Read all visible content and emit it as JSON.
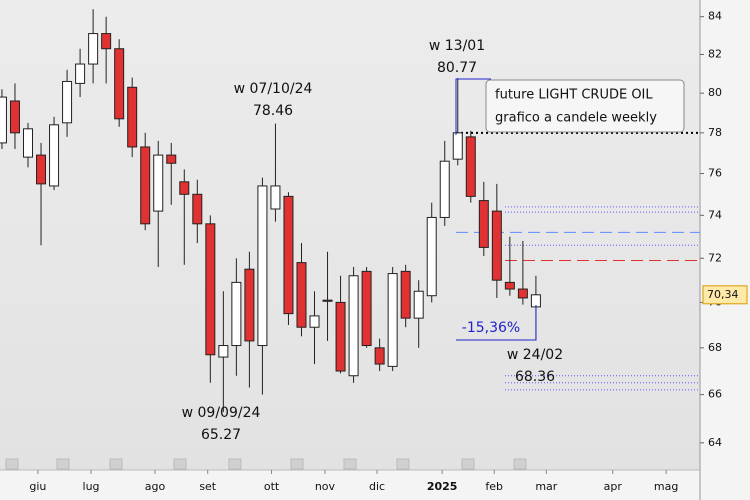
{
  "chart_data": {
    "type": "candlestick",
    "legend_lines": [
      "future LIGHT CRUDE OIL",
      "grafico a candele weekly"
    ],
    "log_scale": true,
    "ylim": [
      62.9,
      84.9
    ],
    "yticks": [
      64,
      66,
      68,
      70,
      72,
      74,
      76,
      78,
      80,
      82,
      84
    ],
    "xlim": [
      -0.15,
      53.6
    ],
    "xticks": [
      {
        "value": 2.76,
        "label": "giu"
      },
      {
        "value": 6.84,
        "label": "lug"
      },
      {
        "value": 11.75,
        "label": "ago"
      },
      {
        "value": 15.8,
        "label": "set"
      },
      {
        "value": 20.7,
        "label": "ott"
      },
      {
        "value": 24.8,
        "label": "nov"
      },
      {
        "value": 28.8,
        "label": "dic"
      },
      {
        "value": 33.8,
        "label": "2025"
      },
      {
        "value": 37.8,
        "label": "feb"
      },
      {
        "value": 41.8,
        "label": "mar"
      },
      {
        "value": 46.9,
        "label": "apr"
      },
      {
        "value": 51.0,
        "label": "mag"
      }
    ],
    "up_color": "#ffffff",
    "down_color": "#e03232",
    "x": [
      0,
      1,
      2,
      3,
      4,
      5,
      6,
      7,
      8,
      9,
      10,
      11,
      12,
      13,
      14,
      15,
      16,
      17,
      18,
      19,
      20,
      21,
      22,
      23,
      24,
      25,
      26,
      27,
      28,
      29,
      30,
      31,
      32,
      33,
      34,
      35,
      36,
      37,
      38,
      39,
      40,
      41
    ],
    "open": [
      77.5,
      79.6,
      76.8,
      76.9,
      75.4,
      78.5,
      80.5,
      81.5,
      83.1,
      82.3,
      80.3,
      77.3,
      74.2,
      76.9,
      75.6,
      75.0,
      73.6,
      67.6,
      68.1,
      71.5,
      68.1,
      74.3,
      74.9,
      71.8,
      68.9,
      70.1,
      70.0,
      66.8,
      71.4,
      68.0,
      67.2,
      71.4,
      69.3,
      70.3,
      73.9,
      76.7,
      77.8,
      74.7,
      74.2,
      70.9,
      70.6,
      69.8
    ],
    "high": [
      80.2,
      80.5,
      78.5,
      77.5,
      78.8,
      81.2,
      82.3,
      84.4,
      84.0,
      82.8,
      80.8,
      78.0,
      77.6,
      77.5,
      76.2,
      75.7,
      74.0,
      70.5,
      72.0,
      72.3,
      75.8,
      78.46,
      75.1,
      72.7,
      70.5,
      72.3,
      71.2,
      71.6,
      71.6,
      68.4,
      71.6,
      71.7,
      71.0,
      74.6,
      77.6,
      80.77,
      78.1,
      75.6,
      75.5,
      73.0,
      72.8,
      71.2
    ],
    "low": [
      77.2,
      77.2,
      76.3,
      72.6,
      75.2,
      77.8,
      79.8,
      80.5,
      80.5,
      78.3,
      76.8,
      73.3,
      71.6,
      74.5,
      71.7,
      72.7,
      66.5,
      65.27,
      66.8,
      66.3,
      66.0,
      73.7,
      69.0,
      68.5,
      67.3,
      68.3,
      66.9,
      66.5,
      68.0,
      67.0,
      67.0,
      68.9,
      68.0,
      70.0,
      73.5,
      76.4,
      74.6,
      72.1,
      70.2,
      70.3,
      69.9,
      68.36
    ],
    "close": [
      79.8,
      78.0,
      78.2,
      75.5,
      78.4,
      80.6,
      81.5,
      83.1,
      82.3,
      78.7,
      77.3,
      73.6,
      76.9,
      76.5,
      75.0,
      73.6,
      67.7,
      68.1,
      70.9,
      68.3,
      75.4,
      75.4,
      69.5,
      68.9,
      69.4,
      70.05,
      67.0,
      71.2,
      68.1,
      67.3,
      71.3,
      69.3,
      70.5,
      73.9,
      76.6,
      78.0,
      74.9,
      72.5,
      71.0,
      70.6,
      70.2,
      70.34
    ],
    "last": {
      "value": 70.34,
      "label": "70,34"
    },
    "annotations": [
      {
        "label": "w 07/10/24",
        "value": 78.46
      },
      {
        "label": "w 13/01",
        "value": 80.77
      },
      {
        "label": "w 09/09/24",
        "value": 65.27
      },
      {
        "label": "w 24/02",
        "value": 68.36
      }
    ],
    "change_label": "-15,36%",
    "levels": [
      {
        "value": 78,
        "color": "#000000",
        "dash": "2 3"
      },
      {
        "value": 74.4,
        "color": "#5a5aff",
        "dash": "1 2"
      },
      {
        "value": 74.15,
        "color": "#5a5aff",
        "dash": "1 2"
      },
      {
        "value": 73.2,
        "color": "#5a8aff",
        "dash": "12 6"
      },
      {
        "value": 72.6,
        "color": "#5a5aff",
        "dash": "1 2"
      },
      {
        "value": 71.9,
        "color": "#e03232",
        "dash": "12 6"
      },
      {
        "value": 66.8,
        "color": "#5a5aff",
        "dash": "1 2"
      },
      {
        "value": 66.5,
        "color": "#5a5aff",
        "dash": "1 2"
      },
      {
        "value": 66.2,
        "color": "#5a5aff",
        "dash": "1 2"
      }
    ]
  }
}
